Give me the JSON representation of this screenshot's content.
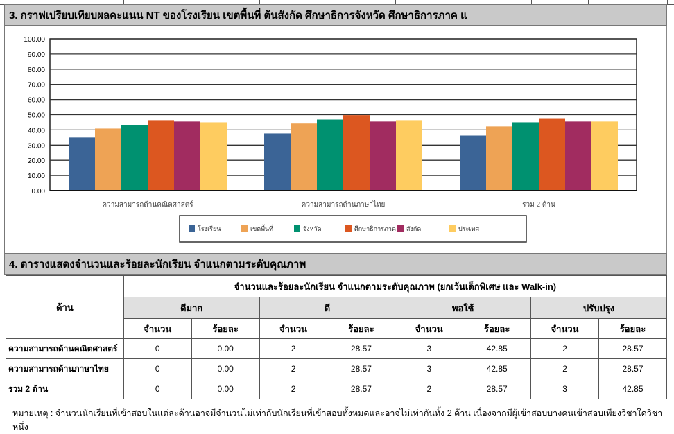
{
  "section3": {
    "title": "3. กราฟเปรียบเทียบผลคะแนน NT ของโรงเรียน เขตพื้นที่  ต้นสังกัด ศึกษาธิการจังหวัด ศึกษาธิการภาค แ"
  },
  "chart_data": {
    "type": "bar",
    "categories": [
      "ความสามารถด้านคณิตศาสตร์",
      "ความสามารถด้านภาษาไทย",
      "รวม 2 ด้าน"
    ],
    "series": [
      {
        "name": "โรงเรียน",
        "color": "#3b6496",
        "values": [
          35.0,
          37.7,
          36.3
        ]
      },
      {
        "name": "เขตพื้นที่",
        "color": "#eea355",
        "values": [
          40.9,
          44.2,
          42.3
        ]
      },
      {
        "name": "จังหวัด",
        "color": "#009170",
        "values": [
          43.2,
          46.8,
          45.0
        ]
      },
      {
        "name": "ศึกษาธิการภาค",
        "color": "#dc5720",
        "values": [
          46.4,
          49.7,
          47.7
        ]
      },
      {
        "name": "สังกัด",
        "color": "#a12c60",
        "values": [
          45.5,
          45.5,
          45.5
        ]
      },
      {
        "name": "ประเทศ",
        "color": "#fecc60",
        "values": [
          45.0,
          46.4,
          45.5
        ]
      }
    ],
    "yticks": [
      "0.00",
      "10.00",
      "20.00",
      "30.00",
      "40.00",
      "50.00",
      "60.00",
      "70.00",
      "80.00",
      "90.00",
      "100.00"
    ],
    "ylim": [
      0,
      100
    ],
    "grid": true,
    "legend": "bottom"
  },
  "section4": {
    "title": "4. ตารางแสดงจำนวนและร้อยละนักเรียน จำแนกตามระดับคุณภาพ",
    "col_aspect": "ด้าน",
    "group_header": "จำนวนและร้อยละนักเรียน จำแนกตามระดับคุณภาพ (ยกเว้นเด็กพิเศษ และ  Walk-in)",
    "levels": [
      "ดีมาก",
      "ดี",
      "พอใช้",
      "ปรับปรุง"
    ],
    "sub": [
      "จำนวน",
      "ร้อยละ"
    ],
    "rows": [
      {
        "name": "ความสามารถด้านคณิตศาสตร์",
        "cells": [
          "0",
          "0.00",
          "2",
          "28.57",
          "3",
          "42.85",
          "2",
          "28.57"
        ]
      },
      {
        "name": "ความสามารถด้านภาษาไทย",
        "cells": [
          "0",
          "0.00",
          "2",
          "28.57",
          "3",
          "42.85",
          "2",
          "28.57"
        ]
      },
      {
        "name": "รวม 2 ด้าน",
        "cells": [
          "0",
          "0.00",
          "2",
          "28.57",
          "2",
          "28.57",
          "3",
          "42.85"
        ]
      }
    ]
  },
  "note": "หมายเหตุ : จำนวนนักเรียนที่เข้าสอบในแต่ละด้านอาจมีจำนวนไม่เท่ากับนักเรียนที่เข้าสอบทั้งหมดและอาจไม่เท่ากันทั้ง 2 ด้าน เนื่องจากมีผู้เข้าสอบบางคนเข้าสอบเพียงวิชาใดวิชาหนึ่ง"
}
